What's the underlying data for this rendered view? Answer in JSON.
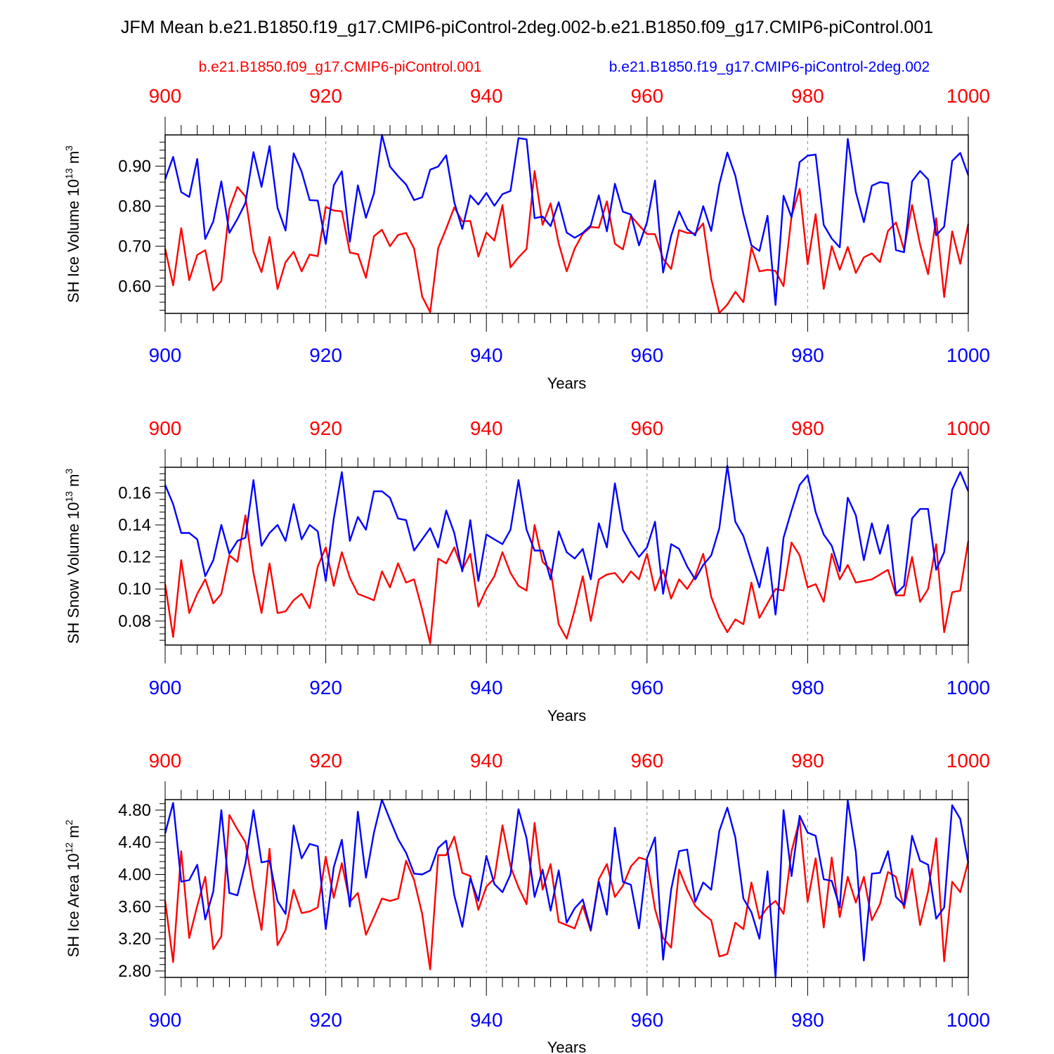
{
  "title": "JFM Mean b.e21.B1850.f19_g17.CMIP6-piControl-2deg.002-b.e21.B1850.f09_g17.CMIP6-piControl.001",
  "legend": [
    {
      "label": "b.e21.B1850.f09_g17.CMIP6-piControl.001",
      "color": "#ff0000"
    },
    {
      "label": "b.e21.B1850.f19_g17.CMIP6-piControl-2deg.002",
      "color": "#0000ff"
    }
  ],
  "colors": {
    "series_a": "#ff0000",
    "series_b": "#0000ff",
    "frame": "#000000",
    "grid": "#888888"
  },
  "chart_data": [
    {
      "type": "line",
      "panel": "ice-volume",
      "ylabel_main": "SH Ice Volume 10",
      "ylabel_exp": "13",
      "ylabel_unit": " m",
      "ylabel_unit_exp": "3",
      "xlabel": "Years",
      "x_start": 900,
      "xlim": [
        900,
        1000
      ],
      "ylim": [
        0.532,
        0.978
      ],
      "yticks": [
        0.6,
        0.7,
        0.8,
        0.9
      ],
      "ytick_labels": [
        "0.60",
        "0.70",
        "0.80",
        "0.90"
      ],
      "xticks": [
        900,
        920,
        940,
        960,
        980,
        1000
      ],
      "xtick_labels": [
        "900",
        "920",
        "940",
        "960",
        "980",
        "1000"
      ],
      "grid": "vertical-dashed",
      "series": [
        {
          "name": "b.e21.B1850.f09_g17.CMIP6-piControl.001",
          "color": "#ff0000",
          "values": [
            0.694,
            0.602,
            0.745,
            0.615,
            0.678,
            0.69,
            0.589,
            0.613,
            0.793,
            0.848,
            0.824,
            0.686,
            0.635,
            0.723,
            0.593,
            0.66,
            0.686,
            0.637,
            0.679,
            0.675,
            0.798,
            0.789,
            0.787,
            0.684,
            0.68,
            0.621,
            0.725,
            0.741,
            0.7,
            0.728,
            0.733,
            0.694,
            0.574,
            0.535,
            0.695,
            0.744,
            0.797,
            0.762,
            0.763,
            0.674,
            0.734,
            0.714,
            0.803,
            0.647,
            0.672,
            0.693,
            0.888,
            0.753,
            0.807,
            0.707,
            0.637,
            0.694,
            0.731,
            0.748,
            0.746,
            0.812,
            0.706,
            0.692,
            0.776,
            0.752,
            0.73,
            0.73,
            0.668,
            0.643,
            0.74,
            0.733,
            0.732,
            0.757,
            0.618,
            0.533,
            0.554,
            0.586,
            0.56,
            0.697,
            0.637,
            0.641,
            0.638,
            0.6,
            0.775,
            0.843,
            0.655,
            0.78,
            0.593,
            0.7,
            0.641,
            0.698,
            0.633,
            0.672,
            0.682,
            0.66,
            0.738,
            0.759,
            0.691,
            0.803,
            0.704,
            0.63,
            0.77,
            0.573,
            0.737,
            0.656,
            0.756
          ]
        },
        {
          "name": "b.e21.B1850.f19_g17.CMIP6-piControl-2deg.002",
          "color": "#0000ff",
          "values": [
            0.867,
            0.923,
            0.835,
            0.823,
            0.918,
            0.718,
            0.762,
            0.862,
            0.733,
            0.768,
            0.808,
            0.935,
            0.848,
            0.95,
            0.796,
            0.739,
            0.932,
            0.886,
            0.815,
            0.814,
            0.706,
            0.852,
            0.887,
            0.711,
            0.852,
            0.771,
            0.832,
            0.978,
            0.899,
            0.875,
            0.854,
            0.815,
            0.822,
            0.891,
            0.899,
            0.927,
            0.81,
            0.743,
            0.827,
            0.804,
            0.833,
            0.801,
            0.83,
            0.838,
            0.97,
            0.967,
            0.77,
            0.774,
            0.75,
            0.81,
            0.734,
            0.721,
            0.733,
            0.752,
            0.827,
            0.737,
            0.856,
            0.786,
            0.779,
            0.702,
            0.76,
            0.864,
            0.634,
            0.726,
            0.787,
            0.743,
            0.727,
            0.8,
            0.738,
            0.855,
            0.934,
            0.876,
            0.78,
            0.702,
            0.688,
            0.776,
            0.553,
            0.826,
            0.772,
            0.91,
            0.926,
            0.929,
            0.753,
            0.719,
            0.697,
            0.968,
            0.835,
            0.76,
            0.851,
            0.86,
            0.857,
            0.69,
            0.685,
            0.862,
            0.888,
            0.867,
            0.727,
            0.749,
            0.913,
            0.933,
            0.877
          ]
        }
      ]
    },
    {
      "type": "line",
      "panel": "snow-volume",
      "ylabel_main": "SH Snow Volume 10",
      "ylabel_exp": "13",
      "ylabel_unit": " m",
      "ylabel_unit_exp": "3",
      "xlabel": "Years",
      "x_start": 900,
      "xlim": [
        900,
        1000
      ],
      "ylim": [
        0.065,
        0.176
      ],
      "yticks": [
        0.08,
        0.1,
        0.12,
        0.14,
        0.16
      ],
      "ytick_labels": [
        "0.08",
        "0.10",
        "0.12",
        "0.14",
        "0.16"
      ],
      "xticks": [
        900,
        920,
        940,
        960,
        980,
        1000
      ],
      "xtick_labels": [
        "900",
        "920",
        "940",
        "960",
        "980",
        "1000"
      ],
      "grid": "vertical-dashed",
      "series": [
        {
          "name": "b.e21.B1850.f09_g17.CMIP6-piControl.001",
          "color": "#ff0000",
          "values": [
            0.103,
            0.07,
            0.118,
            0.085,
            0.097,
            0.106,
            0.091,
            0.097,
            0.121,
            0.117,
            0.146,
            0.11,
            0.085,
            0.116,
            0.085,
            0.086,
            0.093,
            0.097,
            0.088,
            0.114,
            0.126,
            0.102,
            0.123,
            0.107,
            0.097,
            0.095,
            0.093,
            0.111,
            0.101,
            0.116,
            0.104,
            0.106,
            0.087,
            0.066,
            0.119,
            0.116,
            0.126,
            0.112,
            0.122,
            0.089,
            0.1,
            0.108,
            0.123,
            0.11,
            0.102,
            0.099,
            0.14,
            0.117,
            0.112,
            0.078,
            0.069,
            0.087,
            0.108,
            0.08,
            0.106,
            0.109,
            0.11,
            0.104,
            0.111,
            0.106,
            0.122,
            0.099,
            0.112,
            0.094,
            0.106,
            0.1,
            0.108,
            0.122,
            0.095,
            0.082,
            0.073,
            0.081,
            0.078,
            0.104,
            0.082,
            0.091,
            0.1,
            0.099,
            0.129,
            0.121,
            0.101,
            0.103,
            0.092,
            0.122,
            0.106,
            0.115,
            0.104,
            0.105,
            0.106,
            0.109,
            0.112,
            0.096,
            0.096,
            0.12,
            0.092,
            0.1,
            0.128,
            0.073,
            0.098,
            0.099,
            0.13
          ]
        },
        {
          "name": "b.e21.B1850.f19_g17.CMIP6-piControl-2deg.002",
          "color": "#0000ff",
          "values": [
            0.165,
            0.153,
            0.135,
            0.135,
            0.131,
            0.108,
            0.118,
            0.14,
            0.122,
            0.13,
            0.132,
            0.168,
            0.127,
            0.135,
            0.14,
            0.13,
            0.153,
            0.131,
            0.14,
            0.136,
            0.105,
            0.144,
            0.173,
            0.13,
            0.145,
            0.137,
            0.161,
            0.161,
            0.157,
            0.144,
            0.143,
            0.124,
            0.131,
            0.138,
            0.126,
            0.149,
            0.135,
            0.111,
            0.143,
            0.105,
            0.134,
            0.131,
            0.128,
            0.137,
            0.168,
            0.137,
            0.124,
            0.124,
            0.106,
            0.136,
            0.123,
            0.119,
            0.125,
            0.106,
            0.141,
            0.126,
            0.166,
            0.137,
            0.128,
            0.12,
            0.126,
            0.142,
            0.097,
            0.128,
            0.125,
            0.114,
            0.106,
            0.115,
            0.121,
            0.138,
            0.177,
            0.142,
            0.133,
            0.117,
            0.101,
            0.126,
            0.084,
            0.132,
            0.149,
            0.165,
            0.171,
            0.148,
            0.134,
            0.127,
            0.111,
            0.157,
            0.146,
            0.118,
            0.141,
            0.122,
            0.14,
            0.097,
            0.102,
            0.144,
            0.15,
            0.15,
            0.112,
            0.123,
            0.162,
            0.173,
            0.161
          ]
        }
      ]
    },
    {
      "type": "line",
      "panel": "ice-area",
      "ylabel_main": "SH Ice Area 10",
      "ylabel_exp": "12",
      "ylabel_unit": " m",
      "ylabel_unit_exp": "2",
      "xlabel": "Years",
      "x_start": 900,
      "xlim": [
        900,
        1000
      ],
      "ylim": [
        2.72,
        4.93
      ],
      "yticks": [
        2.8,
        3.2,
        3.6,
        4.0,
        4.4,
        4.8
      ],
      "ytick_labels": [
        "2.80",
        "3.20",
        "3.60",
        "4.00",
        "4.40",
        "4.80"
      ],
      "xticks": [
        900,
        920,
        940,
        960,
        980,
        1000
      ],
      "xtick_labels": [
        "900",
        "920",
        "940",
        "960",
        "980",
        "1000"
      ],
      "grid": "vertical-dashed",
      "series": [
        {
          "name": "b.e21.B1850.f09_g17.CMIP6-piControl.001",
          "color": "#ff0000",
          "values": [
            3.67,
            2.91,
            4.29,
            3.21,
            3.61,
            3.97,
            3.07,
            3.23,
            4.74,
            4.56,
            4.4,
            3.81,
            3.31,
            4.32,
            3.12,
            3.31,
            3.81,
            3.52,
            3.54,
            3.59,
            4.22,
            3.71,
            4.14,
            3.66,
            3.77,
            3.25,
            3.47,
            3.7,
            3.67,
            3.7,
            4.17,
            3.93,
            3.51,
            2.82,
            4.24,
            4.24,
            4.47,
            4.02,
            3.98,
            3.56,
            3.85,
            3.95,
            4.61,
            4.1,
            3.84,
            3.63,
            4.64,
            3.81,
            4.13,
            3.41,
            3.37,
            3.33,
            3.61,
            3.3,
            3.94,
            4.13,
            3.72,
            3.86,
            4.1,
            4.21,
            4.18,
            3.57,
            3.21,
            3.09,
            4.06,
            3.81,
            3.61,
            3.51,
            3.43,
            2.98,
            3.01,
            3.4,
            3.32,
            3.9,
            3.45,
            3.59,
            3.67,
            3.51,
            4.29,
            4.68,
            3.66,
            4.2,
            3.34,
            4.21,
            3.47,
            3.97,
            3.65,
            3.97,
            3.43,
            3.63,
            4.03,
            3.97,
            3.58,
            4.07,
            3.37,
            3.79,
            4.45,
            2.92,
            3.91,
            3.78,
            4.16
          ]
        },
        {
          "name": "b.e21.B1850.f19_g17.CMIP6-piControl-2deg.002",
          "color": "#0000ff",
          "values": [
            4.51,
            4.89,
            3.91,
            3.93,
            4.12,
            3.44,
            3.79,
            4.8,
            3.77,
            3.74,
            4.14,
            4.8,
            4.15,
            4.17,
            3.67,
            3.51,
            4.61,
            4.2,
            4.38,
            4.35,
            3.32,
            4.09,
            4.43,
            3.6,
            4.78,
            3.96,
            4.52,
            4.93,
            4.68,
            4.44,
            4.27,
            4.01,
            4.0,
            4.05,
            4.33,
            4.42,
            3.74,
            3.35,
            3.95,
            3.67,
            4.23,
            3.88,
            3.78,
            4.0,
            4.81,
            4.45,
            3.72,
            4.06,
            3.55,
            4.05,
            3.4,
            3.58,
            3.69,
            3.31,
            3.91,
            3.5,
            4.58,
            3.91,
            3.87,
            3.33,
            4.2,
            4.46,
            2.94,
            3.81,
            4.29,
            4.31,
            3.66,
            3.9,
            3.81,
            4.54,
            4.83,
            4.46,
            3.7,
            3.53,
            3.2,
            4.04,
            2.72,
            4.8,
            3.98,
            4.73,
            4.52,
            4.48,
            3.94,
            3.92,
            3.59,
            4.92,
            4.28,
            2.93,
            4.01,
            4.02,
            4.29,
            3.72,
            3.62,
            4.48,
            4.17,
            4.12,
            3.45,
            3.59,
            4.86,
            4.69,
            4.14
          ]
        }
      ]
    }
  ]
}
